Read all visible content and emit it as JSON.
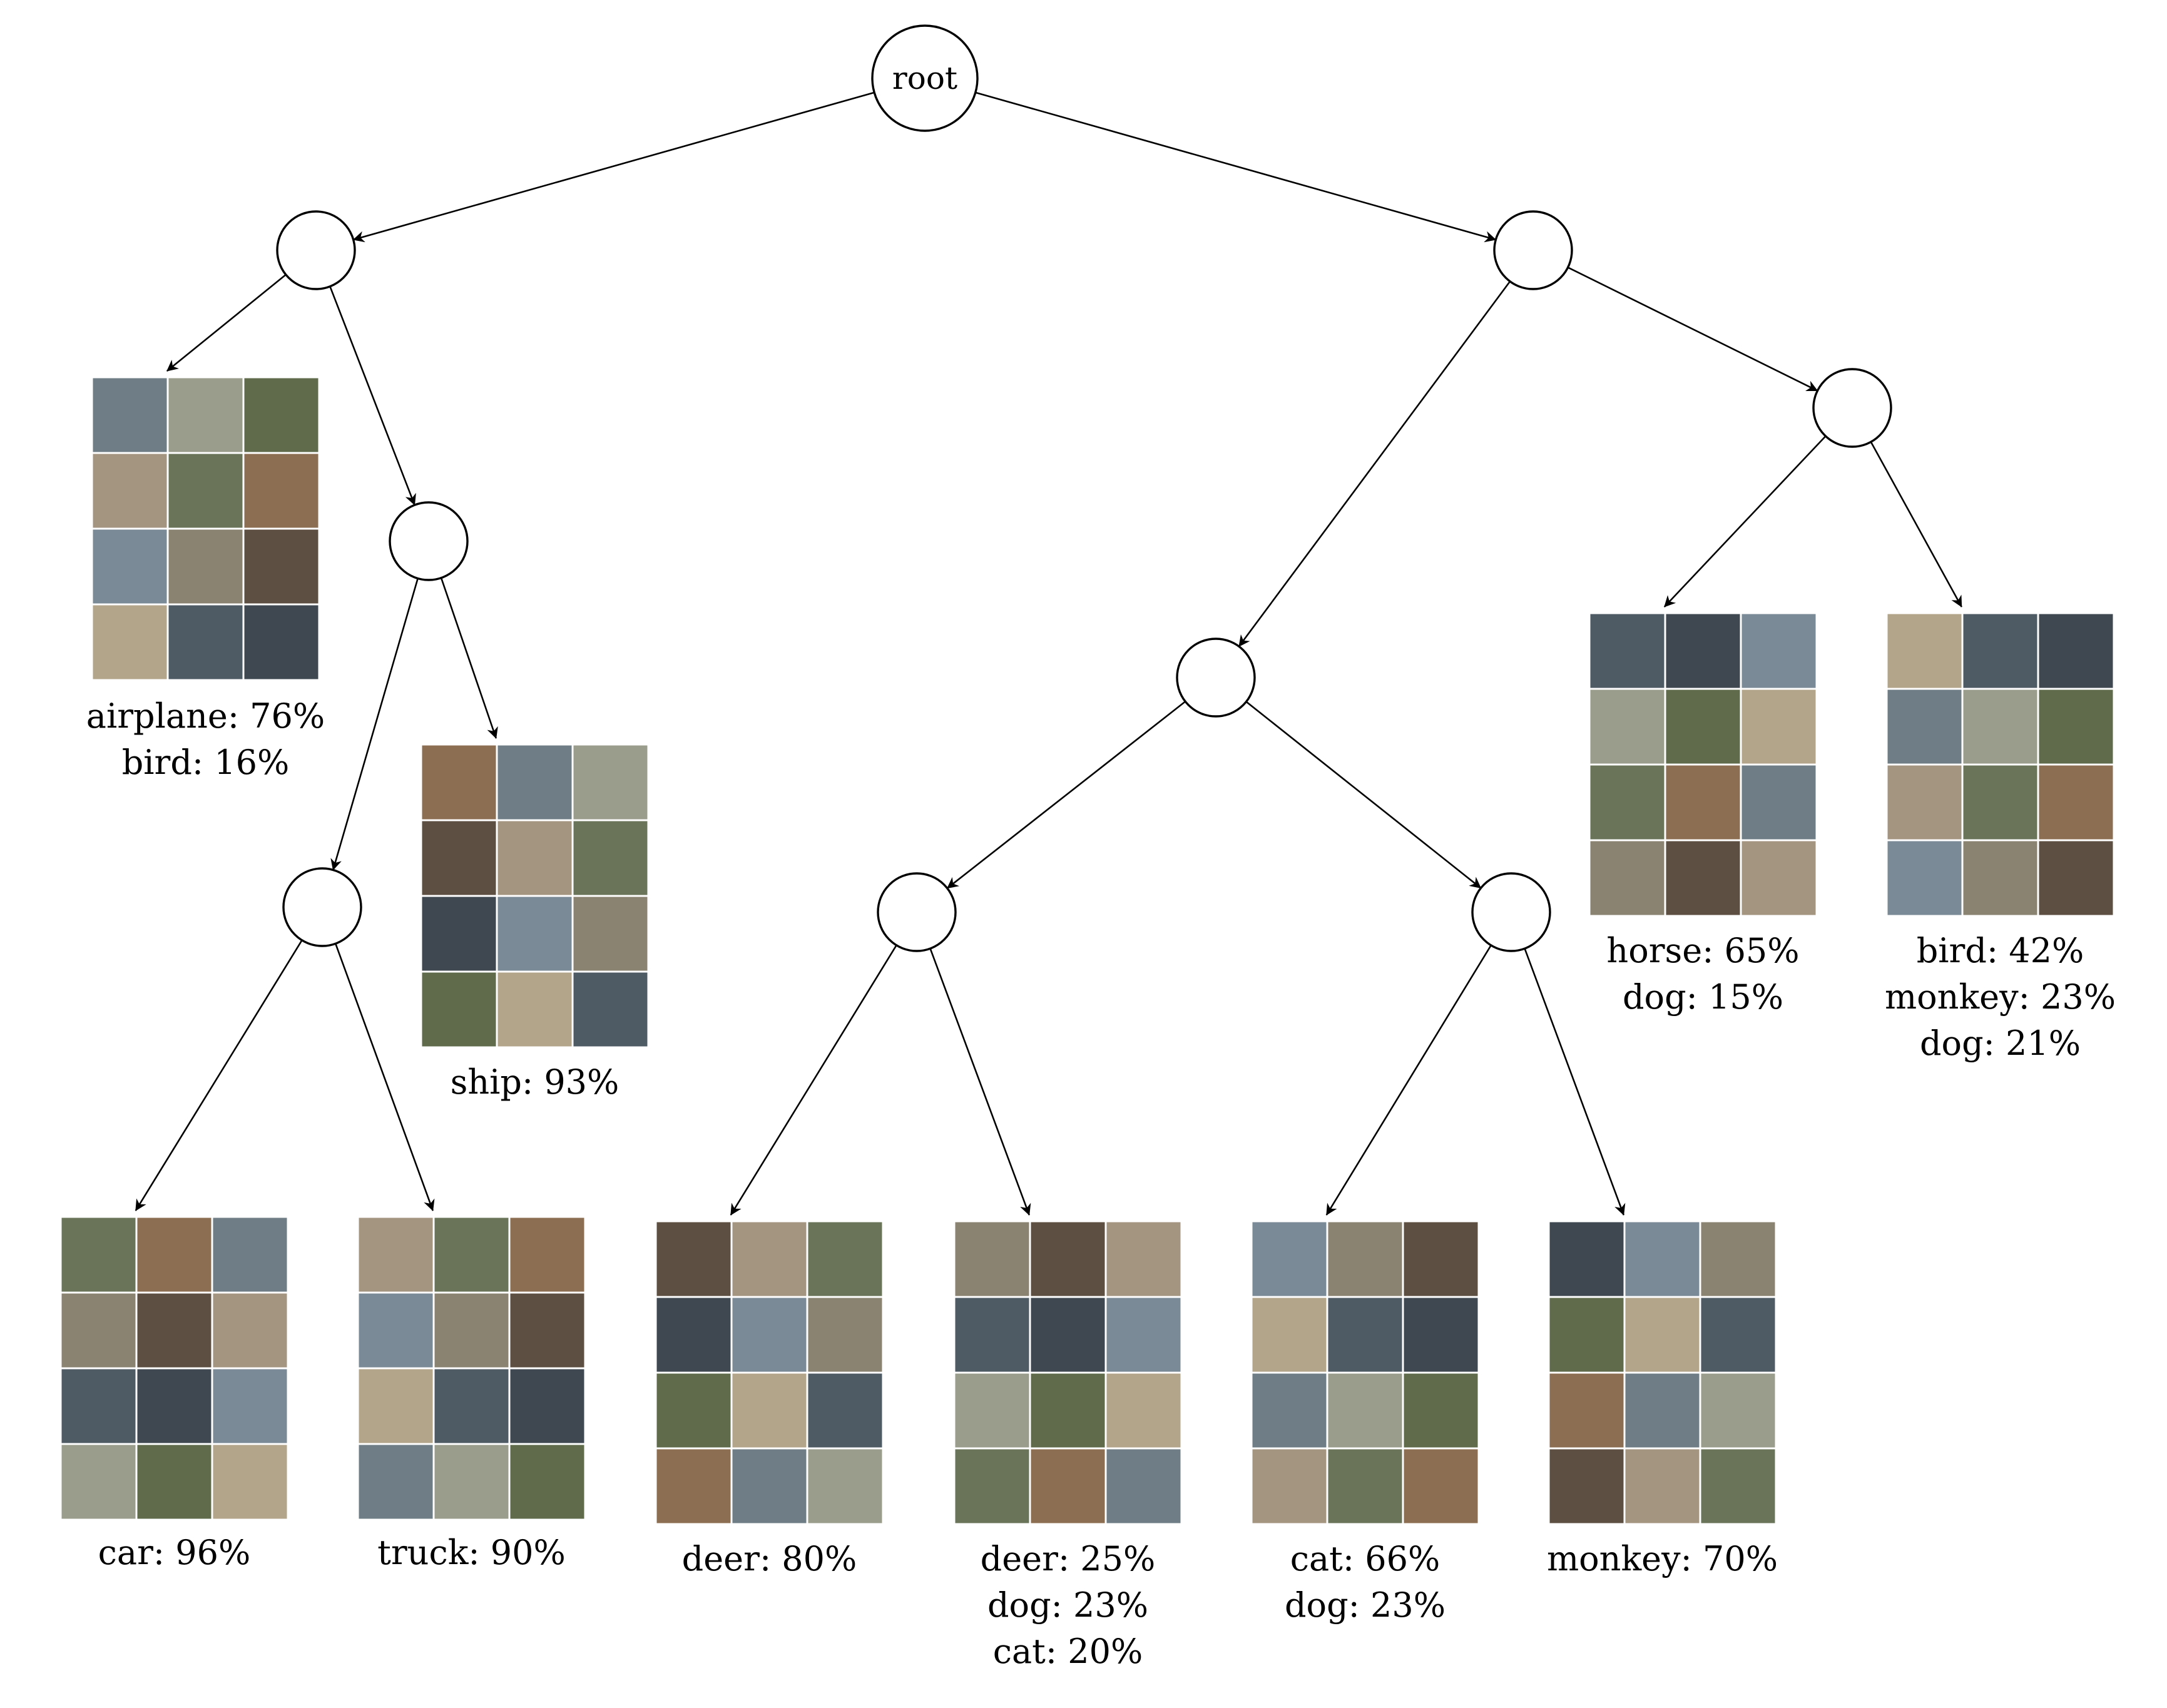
{
  "root": {
    "label": "root"
  },
  "tile_palette": [
    "#6f7d86",
    "#8b8371",
    "#5f6b4a",
    "#a49580",
    "#4e5a64",
    "#8c6e52",
    "#7a8a96",
    "#9a9c8c",
    "#5d5042",
    "#b3a58a",
    "#6a7458",
    "#3f4850"
  ],
  "leaves": [
    {
      "id": "leaf-airplane-bird",
      "grid_rows": 4,
      "lines": [
        {
          "text": "airplane: 76%"
        },
        {
          "text": "bird: 16%"
        }
      ]
    },
    {
      "id": "leaf-ship",
      "grid_rows": 4,
      "lines": [
        {
          "text": "ship: 93%"
        }
      ]
    },
    {
      "id": "leaf-car",
      "grid_rows": 4,
      "lines": [
        {
          "text": "car: 96%"
        }
      ]
    },
    {
      "id": "leaf-truck",
      "grid_rows": 4,
      "lines": [
        {
          "text": "truck: 90%"
        }
      ]
    },
    {
      "id": "leaf-deer",
      "grid_rows": 4,
      "lines": [
        {
          "text": "deer: 80%"
        }
      ]
    },
    {
      "id": "leaf-deer-dog-cat",
      "grid_rows": 4,
      "lines": [
        {
          "text": "deer: 25%"
        },
        {
          "text": "dog: 23%"
        },
        {
          "text": "cat: 20%"
        }
      ]
    },
    {
      "id": "leaf-cat-dog",
      "grid_rows": 4,
      "lines": [
        {
          "text": "cat: 66%"
        },
        {
          "text": "dog: 23%"
        }
      ]
    },
    {
      "id": "leaf-monkey",
      "grid_rows": 4,
      "lines": [
        {
          "text": "monkey: 70%"
        }
      ]
    },
    {
      "id": "leaf-horse-dog",
      "grid_rows": 4,
      "lines": [
        {
          "text": "horse: 65%"
        },
        {
          "text": "dog: 15%"
        }
      ]
    },
    {
      "id": "leaf-bird-monkey-dog",
      "grid_rows": 4,
      "lines": [
        {
          "text": "bird: 42%"
        },
        {
          "text": "monkey: 23%"
        },
        {
          "text": "dog: 21%"
        }
      ]
    }
  ]
}
